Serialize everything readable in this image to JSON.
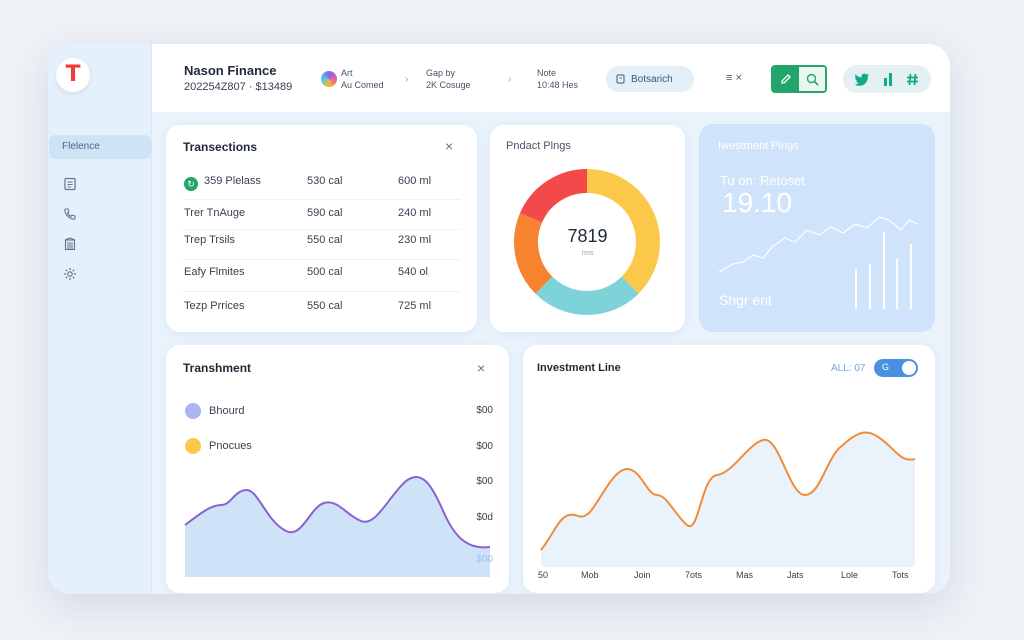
{
  "brand": {
    "title": "Nason Finance",
    "subtitle": "202254Z807 · $13489"
  },
  "breadcrumbs": [
    {
      "line1": "Art",
      "line2": "Au Comed"
    },
    {
      "line1": "Gap by",
      "line2": "2K Cosuge"
    },
    {
      "line1": "Note",
      "line2": "10:48 Hes"
    }
  ],
  "topbar": {
    "search_label": "Botsarich",
    "menu_label": "≡ ×"
  },
  "sidebar": {
    "selected_label": "Flelence",
    "icons": [
      "document-icon",
      "phone-icon",
      "building-icon",
      "settings-icon"
    ]
  },
  "transactions": {
    "title": "Transections",
    "rows": [
      {
        "name": "359 Plelass",
        "col1": "530 cal",
        "col2": "600 ml",
        "badge": true
      },
      {
        "name": "Trer TnAuge",
        "col1": "590 cal",
        "col2": "240 ml"
      },
      {
        "name": "Trep Trsils",
        "col1": "550 cal",
        "col2": "230 ml"
      },
      {
        "name": "Eafy Flmites",
        "col1": "500 cal",
        "col2": "540 ol"
      },
      {
        "name": "Tezp Prrices",
        "col1": "550 cal",
        "col2": "725 ml"
      }
    ]
  },
  "product": {
    "title": "Pndact Plngs",
    "center_value": "7819",
    "center_label": "rms",
    "donut": [
      {
        "value": 25,
        "color": "#fcc84a"
      },
      {
        "value": 12.5,
        "color": "#fcc84a"
      },
      {
        "value": 25,
        "color": "#7ed3d9"
      },
      {
        "value": 19,
        "color": "#f7832e"
      },
      {
        "value": 18.5,
        "color": "#f24a4a"
      }
    ]
  },
  "investment_pings": {
    "title": "Iwestment Plngs",
    "subtitle": "Tu on: Retoset",
    "value": "19.10",
    "footer": "Shgr ent"
  },
  "transment": {
    "title": "Transhment",
    "legend": [
      {
        "label": "Bhourd",
        "color": "#a9b6f0"
      },
      {
        "label": "Pnocues",
        "color": "#fcc84a"
      }
    ],
    "y_labels": [
      "$00",
      "$00",
      "$00",
      "$0d",
      "$00"
    ],
    "colors": {
      "line": "#8a63d2",
      "fill": "#cfe3f8"
    }
  },
  "investment_line": {
    "title": "Investment Line",
    "filter_label": "ALL: 07",
    "toggle_label": "G",
    "x_labels": [
      "50",
      "Mob",
      "Join",
      "7ots",
      "Mas",
      "Jats",
      "Lole",
      "Tots"
    ],
    "colors": {
      "line": "#f08c3a",
      "fill": "#eaf3fb"
    }
  }
}
